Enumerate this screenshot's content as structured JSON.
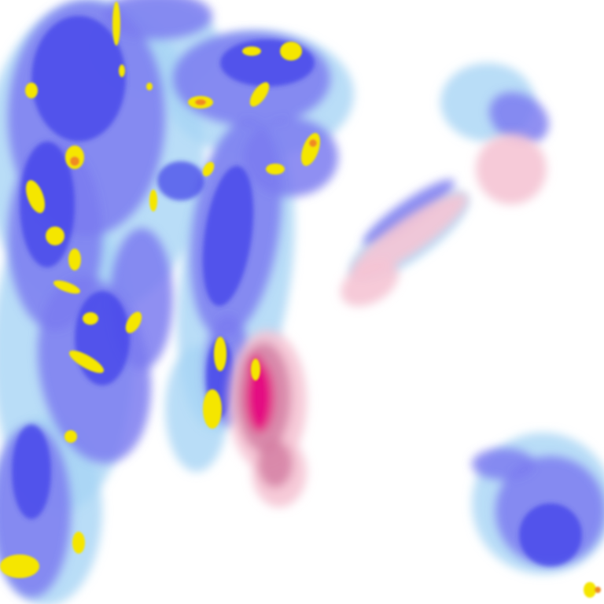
{
  "map": {
    "kind": "precipitation-radar-tile",
    "palette": {
      "background": "#ffffff",
      "rain_light": "#a8d4f5",
      "rain_moderate": "#7b7bf0",
      "rain_heavy": "#3a3ae8",
      "rain_intense": "#f5e600",
      "rain_extreme": "#f08a20",
      "mixed_light": "#f5c4d4",
      "mixed_moderate": "#d27aa0",
      "mixed_heavy": "#e6007e"
    }
  }
}
